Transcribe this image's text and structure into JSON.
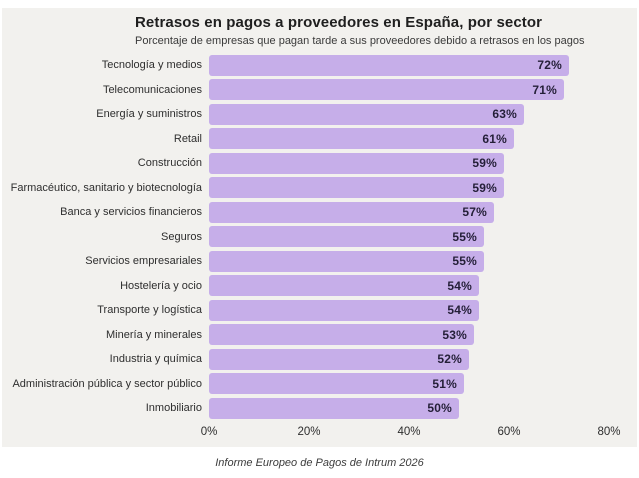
{
  "header": {
    "title": "Retrasos en pagos a proveedores en España, por sector",
    "subtitle": "Porcentaje de empresas que pagan tarde a sus proveedores debido a retrasos en los pagos"
  },
  "footer": {
    "source": "Informe Europeo de Pagos de Intrum 2026"
  },
  "colors": {
    "bar_fill": "#c6aee9",
    "card_background": "#f2f1ee",
    "page_background": "#ffffff",
    "title_text": "#1f1f1f",
    "label_text": "#2e2e2e",
    "value_text": "#241f38"
  },
  "chart_data": {
    "type": "bar",
    "orientation": "horizontal",
    "title": "Retrasos en pagos a proveedores en España, por sector",
    "subtitle": "Porcentaje de empresas que pagan tarde a sus proveedores debido a retrasos en los pagos",
    "source": "Informe Europeo de Pagos de Intrum 2026",
    "categories": [
      "Tecnología y medios",
      "Telecomunicaciones",
      "Energía y suministros",
      "Retail",
      "Construcción",
      "Farmacéutico, sanitario y biotecnología",
      "Banca y servicios financieros",
      "Seguros",
      "Servicios empresariales",
      "Hostelería y ocio",
      "Transporte y logística",
      "Minería y minerales",
      "Industria y química",
      "Administración pública y sector público",
      "Inmobiliario"
    ],
    "values": [
      72,
      71,
      63,
      61,
      59,
      59,
      57,
      55,
      55,
      54,
      54,
      53,
      52,
      51,
      50
    ],
    "value_suffix": "%",
    "xlabel": "",
    "ylabel": "",
    "xlim": [
      0,
      80
    ],
    "x_ticks": [
      {
        "label": "0%",
        "value": 0
      },
      {
        "label": "20%",
        "value": 20
      },
      {
        "label": "40%",
        "value": 40
      },
      {
        "label": "60%",
        "value": 60
      },
      {
        "label": "80%",
        "value": 80
      }
    ],
    "grid": false,
    "legend": false,
    "value_labels_position": "inside-end"
  }
}
